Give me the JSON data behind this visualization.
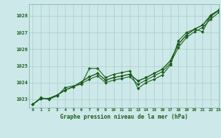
{
  "background_color": "#cce8e8",
  "grid_color": "#aacccc",
  "line_color": "#1a5c1a",
  "title": "Graphe pression niveau de la mer (hPa)",
  "xlim": [
    -0.5,
    23
  ],
  "ylim": [
    1022.5,
    1028.7
  ],
  "yticks": [
    1023,
    1024,
    1025,
    1026,
    1027,
    1028
  ],
  "xticks": [
    0,
    1,
    2,
    3,
    4,
    5,
    6,
    7,
    8,
    9,
    10,
    11,
    12,
    13,
    14,
    15,
    16,
    17,
    18,
    19,
    20,
    21,
    22,
    23
  ],
  "series1_x": [
    0,
    1,
    2,
    3,
    4,
    5,
    6,
    7,
    8,
    9,
    10,
    11,
    12,
    13,
    14,
    15,
    16,
    17,
    18,
    19,
    20,
    21,
    22,
    23
  ],
  "series1_y": [
    1022.7,
    1023.1,
    1023.0,
    1023.2,
    1023.7,
    1023.8,
    1023.9,
    1024.85,
    1024.85,
    1024.3,
    1024.5,
    1024.6,
    1024.7,
    1023.65,
    1024.0,
    1024.2,
    1024.45,
    1025.05,
    1026.5,
    1027.0,
    1027.2,
    1027.05,
    1028.0,
    1028.3
  ],
  "series2_x": [
    0,
    1,
    2,
    3,
    4,
    5,
    6,
    7,
    8,
    9,
    10,
    11,
    12,
    13,
    14,
    15,
    16,
    17,
    18,
    19,
    20,
    21,
    22,
    23
  ],
  "series2_y": [
    1022.7,
    1023.05,
    1023.05,
    1023.25,
    1023.55,
    1023.75,
    1024.05,
    1024.35,
    1024.55,
    1024.15,
    1024.3,
    1024.4,
    1024.5,
    1024.1,
    1024.3,
    1024.55,
    1024.8,
    1025.3,
    1026.3,
    1026.85,
    1027.2,
    1027.45,
    1027.95,
    1028.35
  ],
  "series3_x": [
    0,
    1,
    2,
    3,
    4,
    5,
    6,
    7,
    8,
    9,
    10,
    11,
    12,
    13,
    14,
    15,
    16,
    17,
    18,
    19,
    20,
    21,
    22,
    23
  ],
  "series3_y": [
    1022.7,
    1023.05,
    1023.05,
    1023.25,
    1023.55,
    1023.75,
    1024.05,
    1024.35,
    1024.55,
    1024.15,
    1024.3,
    1024.4,
    1024.5,
    1024.1,
    1024.3,
    1024.55,
    1024.8,
    1025.3,
    1026.3,
    1026.85,
    1027.2,
    1027.45,
    1028.05,
    1028.35
  ],
  "series4_x": [
    0,
    1,
    2,
    3,
    4,
    5,
    6,
    7,
    8,
    9,
    10,
    11,
    12,
    13,
    14,
    15,
    16,
    17,
    18,
    19,
    20,
    21,
    22,
    23
  ],
  "series4_y": [
    1022.7,
    1023.05,
    1023.05,
    1023.25,
    1023.55,
    1023.75,
    1023.95,
    1024.2,
    1024.4,
    1024.0,
    1024.15,
    1024.25,
    1024.35,
    1023.9,
    1024.15,
    1024.4,
    1024.65,
    1025.15,
    1026.1,
    1026.7,
    1027.05,
    1027.3,
    1027.8,
    1028.2
  ]
}
